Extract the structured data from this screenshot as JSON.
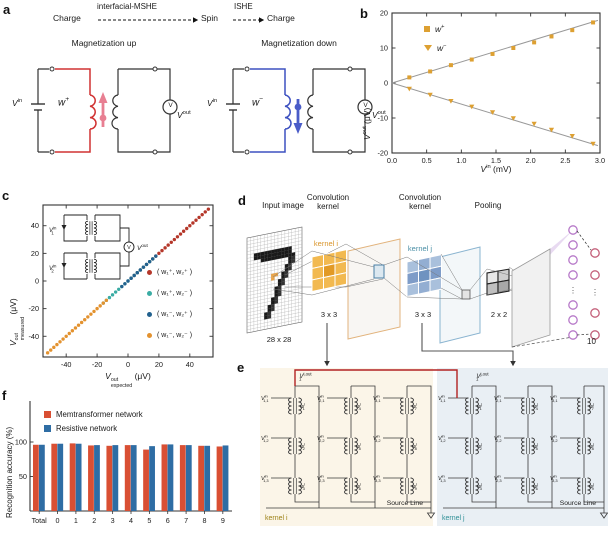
{
  "panel_labels": {
    "a": "a",
    "b": "b",
    "c": "c",
    "d": "d",
    "e": "e",
    "f": "f"
  },
  "panel_a": {
    "flow": {
      "charge1": "Charge",
      "arrow1_label": "interfacial-MSHE",
      "spin": "Spin",
      "arrow2_label": "ISHE",
      "charge2": "Charge"
    },
    "left": {
      "title": "Magnetization up",
      "vin_base": "V",
      "vin_sup": "in",
      "w_base": "w",
      "w_sup": "+",
      "meter": "V",
      "vout_base": "V",
      "vout_sup": "out",
      "loop_color": "#d13232",
      "arrow_color": "#e87f92"
    },
    "right": {
      "title": "Magnetization down",
      "vin_base": "V",
      "vin_sup": "in",
      "w_base": "w",
      "w_sup": "−",
      "meter": "V",
      "vout_base": "V",
      "vout_sup": "out",
      "loop_color": "#3d51c0",
      "arrow_color": "#4a5cc8"
    }
  },
  "chart_data": [
    {
      "id": "b",
      "type": "scatter",
      "xlabel": {
        "b": "V",
        "sup": "in",
        "rest": " (mV)"
      },
      "ylabel": {
        "b": "V",
        "sup": "out",
        "rest": " (μV)"
      },
      "xlim": [
        0,
        3
      ],
      "ylim": [
        -20,
        20
      ],
      "xticks": [
        "0.0",
        "0.5",
        "1.0",
        "1.5",
        "2.0",
        "2.5",
        "3.0"
      ],
      "yticks": [
        20,
        10,
        0,
        -10,
        -20
      ],
      "series": [
        {
          "name_base": "w",
          "name_sup": "+",
          "marker": "square",
          "color": "#DDA032",
          "x": [
            0.25,
            0.55,
            0.85,
            1.15,
            1.45,
            1.75,
            2.05,
            2.3,
            2.6,
            2.9
          ],
          "y": [
            1.6,
            3.3,
            5.1,
            6.7,
            8.3,
            10.0,
            11.6,
            13.3,
            15.1,
            17.3
          ]
        },
        {
          "name_base": "w",
          "name_sup": "−",
          "marker": "triangle-down",
          "color": "#DDA032",
          "x": [
            0.25,
            0.55,
            0.85,
            1.15,
            1.45,
            1.75,
            2.05,
            2.3,
            2.6,
            2.9
          ],
          "y": [
            -1.6,
            -3.3,
            -5.1,
            -6.7,
            -8.3,
            -10.0,
            -11.6,
            -13.3,
            -15.1,
            -17.3
          ]
        }
      ],
      "fit": {
        "color": "#999999",
        "lines": [
          [
            0,
            0,
            2.97,
            17.9
          ],
          [
            0,
            0,
            2.97,
            -17.9
          ]
        ]
      }
    },
    {
      "id": "c",
      "type": "scatter",
      "diagonal": true,
      "xlabel": {
        "b": "V",
        "sup": "out",
        "sub": "expected",
        "rest": " (μV)"
      },
      "ylabel": {
        "b": "V",
        "sup": "out",
        "sub": "measured",
        "rest": " (μV)"
      },
      "xlim": [
        -55,
        55
      ],
      "ylim": [
        -55,
        55
      ],
      "xticks": [
        -40,
        -20,
        0,
        20,
        40
      ],
      "yticks": [
        40,
        20,
        0,
        -20,
        -40
      ],
      "series": [
        {
          "name": "( w₁⁺, w₂⁺ )",
          "color": "#B5372A",
          "range": [
            2,
            52
          ],
          "step": 2
        },
        {
          "name": "( w₁⁺, w₂⁻ )",
          "color": "#3AACA4",
          "range": [
            -16,
            16
          ],
          "step": 2
        },
        {
          "name": "( w₁⁻, w₂⁺ )",
          "color": "#22618E",
          "range": [
            -4,
            18
          ],
          "step": 2
        },
        {
          "name": "( w₁⁻, w₂⁻ )",
          "color": "#E3922F",
          "range": [
            -52,
            -14
          ],
          "step": 2
        }
      ]
    },
    {
      "id": "f",
      "type": "bar",
      "ylabel": "Recognition accuracy (%)",
      "categories": [
        "Total",
        "0",
        "1",
        "2",
        "3",
        "4",
        "5",
        "6",
        "7",
        "8",
        "9"
      ],
      "yticks": [
        50,
        100
      ],
      "ylim": [
        0,
        160
      ],
      "series": [
        {
          "name": "Memtransformer network",
          "color": "#D94F33",
          "values": [
            96,
            97.5,
            98,
            95,
            94.5,
            95.5,
            89,
            96.5,
            95.5,
            94.5,
            93.5
          ]
        },
        {
          "name": "Resistive network",
          "color": "#2E6DA4",
          "values": [
            96,
            97.5,
            97.5,
            95.5,
            95.5,
            95.5,
            94,
            96.5,
            95.5,
            94.5,
            95
          ]
        }
      ]
    }
  ],
  "panel_c_inset": {
    "v1": {
      "b": "V",
      "sub": "1",
      "sup": "in"
    },
    "v2": {
      "b": "V",
      "sub": "2",
      "sup": "in"
    },
    "meter": "V",
    "vout": {
      "b": "V",
      "sup": "out"
    }
  },
  "panel_d": {
    "input_image": "Input image",
    "conv_kernel": "Convolution kernel",
    "pooling": "Pooling",
    "kernel_i": "kernel i",
    "kernel_i_color": "#D9952B",
    "kernel_j": "kernel j",
    "kernel_j_color": "#4A8FA6",
    "dim_input": "28 x 28",
    "dim_k": "3 x 3",
    "dim_pool": "2 x 2",
    "out_count": "10"
  },
  "panel_e": {
    "wire_color": "#B22222",
    "kernels": [
      {
        "name": "kernel i",
        "name_color": "#9D8218",
        "bg": "#FBF5E8",
        "w_sup": "i",
        "vout_sup": "i,out",
        "vout_sub": "1",
        "inputs": [
          "1,1",
          "1,2",
          "1,3",
          "2,1",
          "2,2",
          "2,3",
          "3,1",
          "3,2",
          "3,3"
        ],
        "weights": [
          "1",
          "2",
          "3",
          "4",
          "5",
          "6",
          "7",
          "8",
          "9"
        ],
        "source": "Source Line"
      },
      {
        "name": "kernel j",
        "name_color": "#2E8F96",
        "bg": "#E9EFF4",
        "w_sup": "j",
        "vout_sup": "j,out",
        "vout_sub": "1",
        "inputs": [
          "1,1",
          "1,2",
          "1,3",
          "2,1",
          "2,2",
          "2,3",
          "3,1",
          "3,2",
          "3,3"
        ],
        "weights": [
          "1",
          "2",
          "3",
          "4",
          "5",
          "6",
          "7",
          "8",
          "9"
        ],
        "source": "Source Line"
      }
    ]
  }
}
